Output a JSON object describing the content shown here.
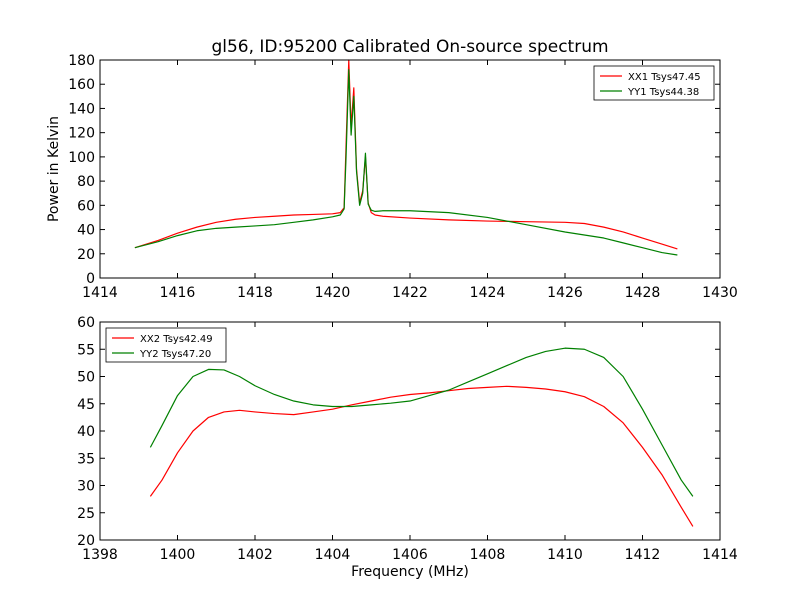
{
  "chart_data": [
    {
      "type": "line",
      "title": "gl56, ID:95200 Calibrated On-source spectrum",
      "xlabel": "",
      "ylabel": "Power in Kelvin",
      "xlim": [
        1414,
        1430
      ],
      "ylim": [
        0,
        180
      ],
      "xticks": [
        "1414",
        "1416",
        "1418",
        "1420",
        "1422",
        "1424",
        "1426",
        "1428",
        "1430"
      ],
      "yticks": [
        "0",
        "20",
        "40",
        "60",
        "80",
        "100",
        "120",
        "140",
        "160",
        "180"
      ],
      "grid": false,
      "legend": "top-right",
      "series": [
        {
          "name": "XX1 Tsys47.45",
          "color": "#ff0000",
          "x": [
            1414.9,
            1415.5,
            1416,
            1416.5,
            1417,
            1417.5,
            1418,
            1418.5,
            1419,
            1419.5,
            1420,
            1420.2,
            1420.3,
            1420.35,
            1420.42,
            1420.48,
            1420.55,
            1420.62,
            1420.7,
            1420.78,
            1420.85,
            1420.92,
            1421.0,
            1421.1,
            1421.3,
            1422,
            1423,
            1424,
            1425,
            1426,
            1426.5,
            1427,
            1427.5,
            1428,
            1428.5,
            1428.9
          ],
          "y": [
            25,
            31,
            37,
            42,
            46,
            48.5,
            50,
            51,
            52,
            52.5,
            53,
            54,
            58,
            110,
            180,
            125,
            157,
            90,
            62,
            72,
            100,
            62,
            54,
            52,
            51,
            49.5,
            48,
            47,
            46.5,
            46,
            45,
            42,
            38,
            33,
            28,
            24
          ]
        },
        {
          "name": "YY1 Tsys44.38",
          "color": "#008000",
          "x": [
            1414.9,
            1415.5,
            1416,
            1416.5,
            1417,
            1417.5,
            1418,
            1418.5,
            1419,
            1419.5,
            1420,
            1420.2,
            1420.3,
            1420.35,
            1420.42,
            1420.48,
            1420.55,
            1420.62,
            1420.7,
            1420.78,
            1420.85,
            1420.92,
            1421.0,
            1421.1,
            1421.3,
            1422,
            1423,
            1424,
            1425,
            1426,
            1426.5,
            1427,
            1427.5,
            1428,
            1428.5,
            1428.9
          ],
          "y": [
            25,
            30,
            35,
            39,
            41,
            42,
            43,
            44,
            46,
            48,
            50.5,
            52,
            57,
            100,
            172,
            118,
            150,
            88,
            60,
            70,
            103,
            61,
            56,
            55,
            55.5,
            55.5,
            54,
            50,
            44,
            38,
            35.5,
            33,
            29,
            25,
            21,
            19
          ]
        }
      ]
    },
    {
      "type": "line",
      "title": "",
      "xlabel": "Frequency (MHz)",
      "ylabel": "",
      "xlim": [
        1398,
        1414
      ],
      "ylim": [
        20,
        60
      ],
      "xticks": [
        "1398",
        "1400",
        "1402",
        "1404",
        "1406",
        "1408",
        "1410",
        "1412",
        "1414"
      ],
      "yticks": [
        "20",
        "25",
        "30",
        "35",
        "40",
        "45",
        "50",
        "55",
        "60"
      ],
      "grid": false,
      "legend": "top-left",
      "series": [
        {
          "name": "XX2 Tsys42.49",
          "color": "#ff0000",
          "x": [
            1399.3,
            1399.6,
            1400,
            1400.4,
            1400.8,
            1401.2,
            1401.6,
            1402,
            1402.5,
            1403,
            1403.5,
            1404,
            1404.5,
            1405,
            1405.5,
            1406,
            1406.5,
            1407,
            1407.5,
            1408,
            1408.5,
            1409,
            1409.5,
            1410,
            1410.5,
            1411,
            1411.5,
            1412,
            1412.5,
            1413,
            1413.3
          ],
          "y": [
            28,
            31,
            36,
            40,
            42.5,
            43.5,
            43.8,
            43.5,
            43.2,
            43,
            43.5,
            44,
            44.8,
            45.5,
            46.2,
            46.7,
            47,
            47.4,
            47.8,
            48,
            48.2,
            48,
            47.7,
            47.2,
            46.3,
            44.5,
            41.5,
            37,
            32,
            26,
            22.5
          ]
        },
        {
          "name": "YY2 Tsys47.20",
          "color": "#008000",
          "x": [
            1399.3,
            1399.6,
            1400,
            1400.4,
            1400.8,
            1401.2,
            1401.6,
            1402,
            1402.5,
            1403,
            1403.5,
            1404,
            1404.5,
            1405,
            1405.5,
            1406,
            1406.5,
            1407,
            1407.5,
            1408,
            1408.5,
            1409,
            1409.5,
            1410,
            1410.5,
            1411,
            1411.5,
            1412,
            1412.5,
            1413,
            1413.3
          ],
          "y": [
            37,
            41,
            46.5,
            50,
            51.3,
            51.2,
            50,
            48.3,
            46.7,
            45.5,
            44.8,
            44.5,
            44.5,
            44.8,
            45.1,
            45.5,
            46.5,
            47.5,
            49,
            50.5,
            52,
            53.5,
            54.6,
            55.2,
            55,
            53.5,
            50,
            44,
            37.5,
            31,
            28
          ]
        }
      ]
    }
  ]
}
